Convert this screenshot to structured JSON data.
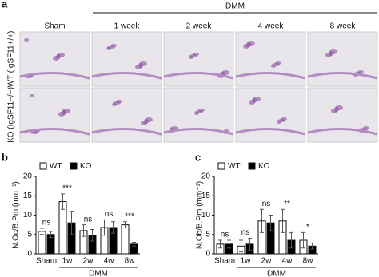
{
  "figure_a": {
    "panel": "a",
    "group_label": "DMM",
    "columns": [
      "Sham",
      "1 week",
      "2 week",
      "4 week",
      "8 week"
    ],
    "rows": [
      "WT (IgSF11+/+)",
      "KO (IgSF11−/−)"
    ]
  },
  "chart_data": [
    {
      "type": "bar",
      "panel": "b",
      "y_label": "N.Oc/B.Pm (mm⁻¹)",
      "group_label": "DMM",
      "categories": [
        "Sham",
        "1w",
        "2w",
        "4w",
        "8w"
      ],
      "series": [
        {
          "name": "WT",
          "color": "#ffffff",
          "values": [
            5.8,
            13.5,
            6,
            6.8,
            7.5
          ],
          "errors": [
            0.8,
            2,
            1.5,
            2,
            0.8
          ]
        },
        {
          "name": "KO",
          "color": "#000000",
          "values": [
            5,
            8,
            4.8,
            6.8,
            2.5
          ],
          "errors": [
            0.8,
            3,
            1.5,
            1.5,
            0.5
          ]
        }
      ],
      "significance": [
        "ns",
        "***",
        "ns",
        "ns",
        "***"
      ],
      "ylim": [
        0,
        20
      ],
      "yticks": [
        0,
        5,
        10,
        15,
        20
      ]
    },
    {
      "type": "bar",
      "panel": "c",
      "y_label": "N.Ob/B.Pm (mm⁻¹)",
      "group_label": "DMM",
      "categories": [
        "Sham",
        "1w",
        "2w",
        "4w",
        "8w"
      ],
      "series": [
        {
          "name": "WT",
          "color": "#ffffff",
          "values": [
            2.5,
            2,
            8.5,
            8.5,
            3.5
          ],
          "errors": [
            1,
            1.5,
            3,
            3,
            2
          ]
        },
        {
          "name": "KO",
          "color": "#000000",
          "values": [
            2.5,
            2.5,
            8,
            3.5,
            2
          ],
          "errors": [
            1,
            1.5,
            2,
            2,
            0.8
          ]
        }
      ],
      "significance": [
        "ns",
        "ns",
        "ns",
        "**",
        "*"
      ],
      "ylim": [
        0,
        20
      ],
      "yticks": [
        0,
        5,
        10,
        15,
        20
      ]
    }
  ]
}
